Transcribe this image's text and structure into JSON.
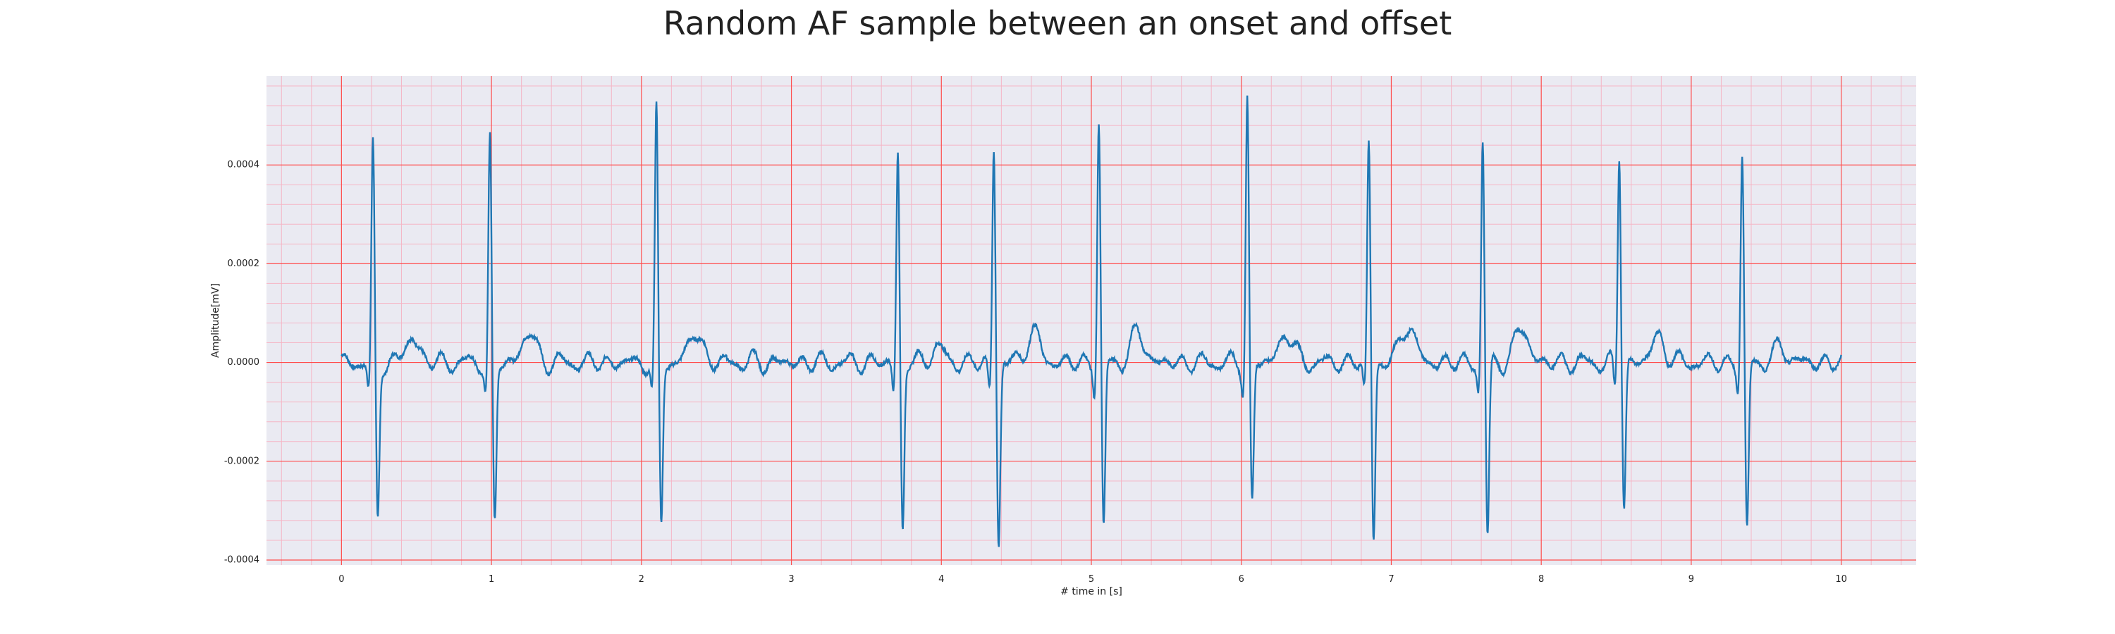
{
  "chart_data": {
    "type": "line",
    "title": "Random AF sample between an onset and offset",
    "xlabel": "# time in [s]",
    "ylabel": "Amplitude[mV]",
    "xlim": [
      -0.5,
      10.5
    ],
    "ylim": [
      -0.00041,
      0.00058
    ],
    "x_ticks": [
      0,
      1,
      2,
      3,
      4,
      5,
      6,
      7,
      8,
      9,
      10
    ],
    "x_tick_labels": [
      "0",
      "1",
      "2",
      "3",
      "4",
      "5",
      "6",
      "7",
      "8",
      "9",
      "10"
    ],
    "y_ticks": [
      -0.0004,
      -0.0002,
      0.0,
      0.0002,
      0.0004
    ],
    "y_tick_labels": [
      "-0.0004",
      "-0.0002",
      "0.0000",
      "0.0002",
      "0.0004"
    ],
    "grid": true,
    "colors": {
      "background": "#eaeaf2",
      "major_grid": "#ff4d4d",
      "minor_grid": "#f5b5c5",
      "line": "#1f77b4"
    },
    "series": [
      {
        "sample_rate_hz": 100,
        "x_start": 0,
        "x_end": 10,
        "r_peaks_s": [
          0.21,
          0.99,
          2.1,
          3.71,
          4.35,
          5.05,
          6.04,
          6.85,
          7.61,
          8.52,
          9.34
        ],
        "r_peak_amplitudes": [
          0.00044,
          0.00045,
          0.00051,
          0.00043,
          0.00044,
          0.00049,
          0.00054,
          0.00045,
          0.00045,
          0.00043,
          0.00042
        ],
        "s_trough_amplitudes": [
          -0.00032,
          -0.00033,
          -0.00033,
          -0.00034,
          -0.00037,
          -0.00034,
          -0.00029,
          -0.00036,
          -0.00036,
          -0.00029,
          -0.00034
        ],
        "t_wave_amplitudes": [
          5e-05,
          6e-05,
          6e-05,
          3e-05,
          6e-05,
          6e-05,
          6e-05,
          8e-05,
          7e-05,
          5e-05,
          3e-05
        ],
        "t_wave_delay_s": 0.26,
        "fibrillation_amplitude": 1.2e-05
      }
    ]
  }
}
